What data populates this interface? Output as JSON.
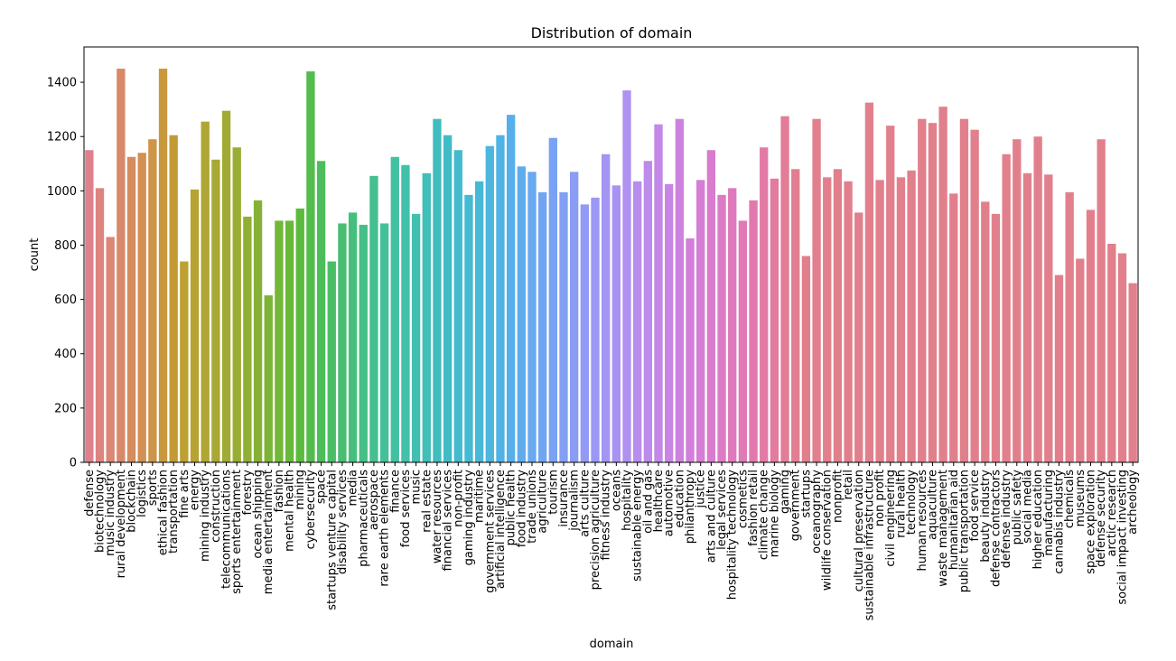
{
  "chart_data": {
    "type": "bar",
    "title": "Distribution of domain",
    "xlabel": "domain",
    "ylabel": "count",
    "ylim": [
      0,
      1530
    ],
    "yticks": [
      0,
      200,
      400,
      600,
      800,
      1000,
      1200,
      1400
    ],
    "grid": false,
    "categories": [
      "defense",
      "biotechnology",
      "music industry",
      "rural development",
      "blockchain",
      "logistics",
      "sports",
      "ethical fashion",
      "transportation",
      "fine arts",
      "energy",
      "mining industry",
      "construction",
      "telecommunications",
      "sports entertainment",
      "forestry",
      "ocean shipping",
      "media entertainment",
      "fashion",
      "mental health",
      "mining",
      "cybersecurity",
      "space",
      "startups venture capital",
      "disability services",
      "media",
      "pharmaceuticals",
      "aerospace",
      "rare earth elements",
      "finance",
      "food services",
      "music",
      "real estate",
      "water resources",
      "financial services",
      "non-profit",
      "gaming industry",
      "maritime",
      "government services",
      "artificial intelligence",
      "public health",
      "food industry",
      "trade unions",
      "agriculture",
      "tourism",
      "insurance",
      "journalism",
      "arts culture",
      "precision agriculture",
      "fitness industry",
      "oceans",
      "hospitality",
      "sustainable energy",
      "oil and gas",
      "healthcare",
      "automotive",
      "education",
      "philanthropy",
      "justice",
      "arts and culture",
      "legal services",
      "hospitality technology",
      "cosmetics",
      "fashion retail",
      "climate change",
      "marine biology",
      "gaming",
      "government",
      "startups",
      "oceanography",
      "wildlife conservation",
      "nonprofit",
      "retail",
      "cultural preservation",
      "sustainable infrastructure",
      "non profit",
      "civil engineering",
      "rural health",
      "technology",
      "human resources",
      "aquaculture",
      "waste management",
      "humanitarian aid",
      "public transportation",
      "food service",
      "beauty industry",
      "defense contractors",
      "defense industry",
      "public safety",
      "social media",
      "higher education",
      "manufacturing",
      "cannabis industry",
      "chemicals",
      "museums",
      "space exploration",
      "defense security",
      "arctic research",
      "social impact investing",
      "archeology"
    ],
    "values": [
      1150,
      1010,
      830,
      1450,
      1125,
      1140,
      1190,
      1450,
      1205,
      740,
      1005,
      1255,
      1115,
      1295,
      1160,
      905,
      965,
      615,
      890,
      890,
      935,
      1440,
      1110,
      740,
      880,
      920,
      875,
      1055,
      880,
      1125,
      1095,
      915,
      1065,
      1265,
      1205,
      1150,
      985,
      1035,
      1165,
      1205,
      1280,
      1090,
      1070,
      995,
      1195,
      995,
      1070,
      950,
      975,
      1135,
      1020,
      1370,
      1035,
      1110,
      1245,
      1025,
      1265,
      825,
      1040,
      1150,
      985,
      1010,
      890,
      965,
      1160,
      1045,
      1275,
      1080,
      760,
      1265,
      1050,
      1080,
      1035,
      920,
      1325,
      1040,
      1240,
      1050,
      1075,
      1265,
      1250,
      1310,
      990,
      1265,
      1225,
      960,
      915,
      1135,
      1190,
      1065,
      1200,
      1060,
      690,
      995,
      750,
      930,
      1190,
      805,
      770,
      660
    ],
    "colors": [
      "#e1808c",
      "#dd8380",
      "#db8676",
      "#d8896a",
      "#d58c5e",
      "#d29052",
      "#ce9448",
      "#c9983c",
      "#c39b35",
      "#bca032",
      "#b6a332",
      "#afa634",
      "#a8a834",
      "#a1ab34",
      "#98ad34",
      "#90af35",
      "#87b135",
      "#7cb436",
      "#72b737",
      "#68b938",
      "#5cbb3e",
      "#53bc4c",
      "#4dbd5b",
      "#4abe67",
      "#48be72",
      "#47bf7c",
      "#45bf86",
      "#44c090",
      "#43c099",
      "#42c0a2",
      "#41c0aa",
      "#41bfb1",
      "#40beb8",
      "#40bdbf",
      "#41bcc6",
      "#43bbcd",
      "#45bad3",
      "#48b8d9",
      "#4cb6df",
      "#51b3e5",
      "#57afea",
      "#5faced",
      "#68a9f0",
      "#71a5f2",
      "#7aa2f3",
      "#829ff4",
      "#8b9cf5",
      "#939af5",
      "#9b97f4",
      "#a295f3",
      "#a993f2",
      "#b091f0",
      "#b78eee",
      "#bd8beb",
      "#c388e8",
      "#c985e4",
      "#ce82df",
      "#d27fdb",
      "#d67dd5",
      "#d97ccd",
      "#dc7ac6",
      "#de79be",
      "#e079b6",
      "#e179ae",
      "#e27aa6",
      "#e37b9f",
      "#e37d97",
      "#e27e91",
      "#e1808c",
      "#e1808c",
      "#e1808c",
      "#e1808c",
      "#e1808c",
      "#e1808c",
      "#e1808c",
      "#e1808c",
      "#e1808c",
      "#e1808c",
      "#e1808c",
      "#e1808c",
      "#e1808c",
      "#e1808c",
      "#e1808c",
      "#e1808c",
      "#e1808c",
      "#e1808c",
      "#e1808c",
      "#e1808c",
      "#e1808c",
      "#e1808c",
      "#e1808c",
      "#e1808c",
      "#e1808c",
      "#e1808c",
      "#e1808c",
      "#e1808c",
      "#e1808c",
      "#e1808c",
      "#e1808c",
      "#e1808c"
    ]
  }
}
